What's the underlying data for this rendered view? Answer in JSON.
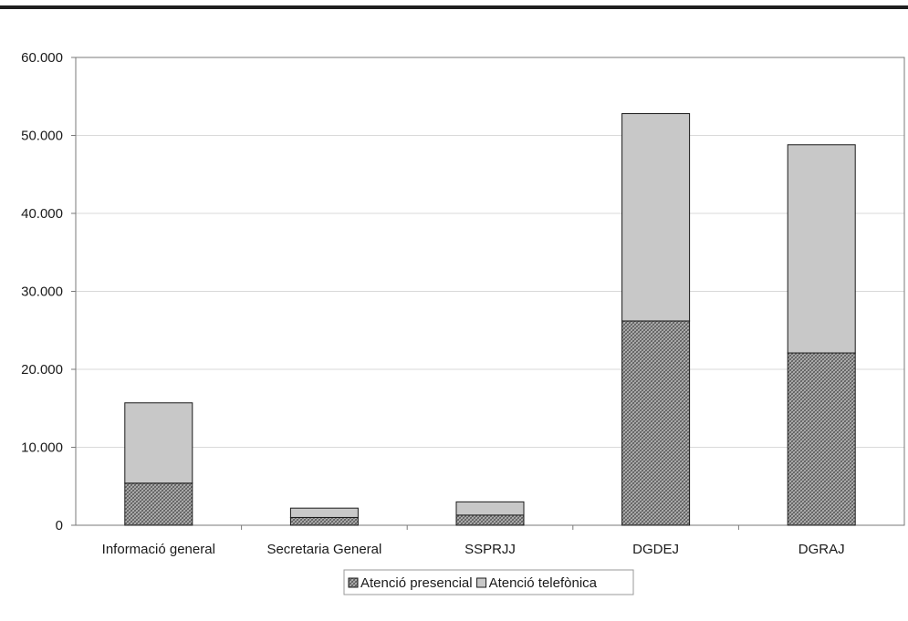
{
  "chart_data": {
    "type": "bar",
    "stacked": true,
    "categories": [
      "Informació general",
      "Secretaria General",
      "SSPRJJ",
      "DGDEJ",
      "DGRAJ"
    ],
    "series": [
      {
        "name": "Atenció presencial",
        "values": [
          5400,
          1000,
          1300,
          26200,
          22100
        ],
        "color": "#8a8a8a",
        "pattern": "crosshatch"
      },
      {
        "name": "Atenció telefònica",
        "values": [
          10300,
          1200,
          1700,
          26600,
          26700
        ],
        "color": "#c8c8c8",
        "pattern": "solid"
      }
    ],
    "y_ticks": [
      "0",
      "10.000",
      "20.000",
      "30.000",
      "40.000",
      "50.000",
      "60.000"
    ],
    "ylim": [
      0,
      60000
    ],
    "grid": true,
    "legend_position": "bottom"
  }
}
